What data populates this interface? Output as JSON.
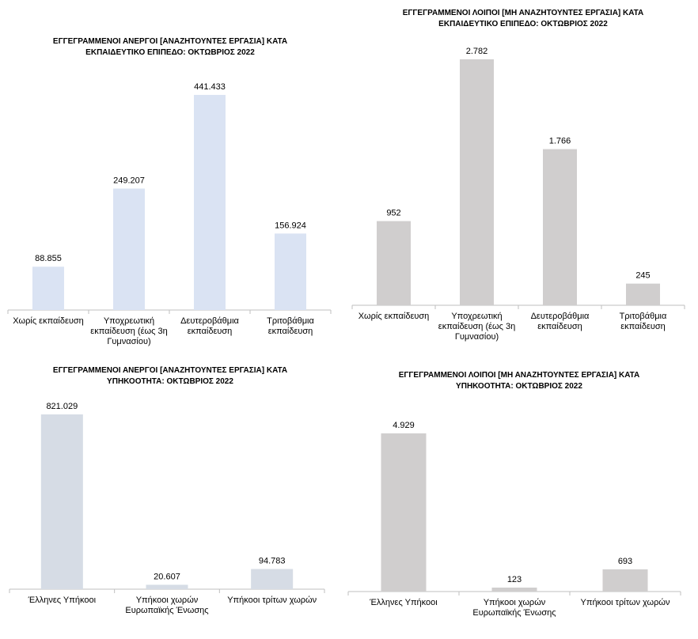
{
  "charts": [
    {
      "type": "bar",
      "title": "ΕΓΓΕΓΡΑΜΜΕΝΟΙ ΑΝΕΡΓΟΙ [ΑΝΑΖΗΤΟΥΝΤΕΣ ΕΡΓΑΣΙΑ] ΚΑΤΑ\nΕΚΠΑΙΔΕΥΤΙΚΟ ΕΠΙΠΕΔΟ: ΟΚΤΩΒΡΙΟΣ 2022",
      "categories": [
        "Χωρίς εκπαίδευση",
        "Υποχρεωτική\nεκπαίδευση (έως 3η\nΓυμνασίου)",
        "Δευτεροβάθμια\nεκπαίδευση",
        "Τριτοβάθμια\nεκπαίδευση"
      ],
      "values": [
        88855,
        249207,
        441433,
        156924
      ],
      "value_labels": [
        "88.855",
        "249.207",
        "441.433",
        "156.924"
      ],
      "ylim": [
        0,
        441433
      ],
      "bar_color": "#dae3f3"
    },
    {
      "type": "bar",
      "title": "ΕΓΓΕΓΡΑΜΜΕΝΟΙ ΛΟΙΠΟΙ [ΜΗ ΑΝΑΖΗΤΟΥΝΤΕΣ ΕΡΓΑΣΙΑ] ΚΑΤΑ\nΕΚΠΑΙΔΕΥΤΙΚΟ ΕΠΙΠΕΔΟ: ΟΚΤΩΒΡΙΟΣ  2022",
      "categories": [
        "Χωρίς εκπαίδευση",
        "Υποχρεωτική\nεκπαίδευση (έως 3η\nΓυμνασίου)",
        "Δευτεροβάθμια\nεκπαίδευση",
        "Τριτοβάθμια\nεκπαίδευση"
      ],
      "values": [
        952,
        2782,
        1766,
        245
      ],
      "value_labels": [
        "952",
        "2.782",
        "1.766",
        "245"
      ],
      "ylim": [
        0,
        2782
      ],
      "bar_color": "#d0cece"
    },
    {
      "type": "bar",
      "title": "ΕΓΓΕΓΡΑΜΜΕΝΟΙ ΑΝΕΡΓΟΙ [ΑΝΑΖΗΤΟΥΝΤΕΣ ΕΡΓΑΣΙΑ] ΚΑΤΑ\nΥΠΗΚΟΟΤΗΤΑ: ΟΚΤΩΒΡΙΟΣ 2022",
      "categories": [
        "Έλληνες Υπήκοοι",
        "Υπήκοοι χωρών\nΕυρωπαϊκής Ένωσης",
        "Υπήκοοι τρίτων χωρών"
      ],
      "values": [
        821029,
        20607,
        94783
      ],
      "value_labels": [
        "821.029",
        "20.607",
        "94.783"
      ],
      "ylim": [
        0,
        821029
      ],
      "bar_color": "#d6dce5"
    },
    {
      "type": "bar",
      "title": "ΕΓΓΕΓΡΑΜΜΕΝΟΙ ΛΟΙΠΟΙ [ΜΗ ΑΝΑΖΗΤΟΥΝΤΕΣ ΕΡΓΑΣΙΑ] ΚΑΤΑ\nΥΠΗΚΟΟΤΗΤΑ: ΟΚΤΩΒΡΙΟΣ  2022",
      "categories": [
        "Έλληνες Υπήκοοι",
        "Υπήκοοι χωρών\nΕυρωπαϊκής Ένωσης",
        "Υπήκοοι τρίτων χωρών"
      ],
      "values": [
        4929,
        123,
        693
      ],
      "value_labels": [
        "4.929",
        "123",
        "693"
      ],
      "ylim": [
        0,
        4929
      ],
      "bar_color": "#d0cece"
    }
  ]
}
